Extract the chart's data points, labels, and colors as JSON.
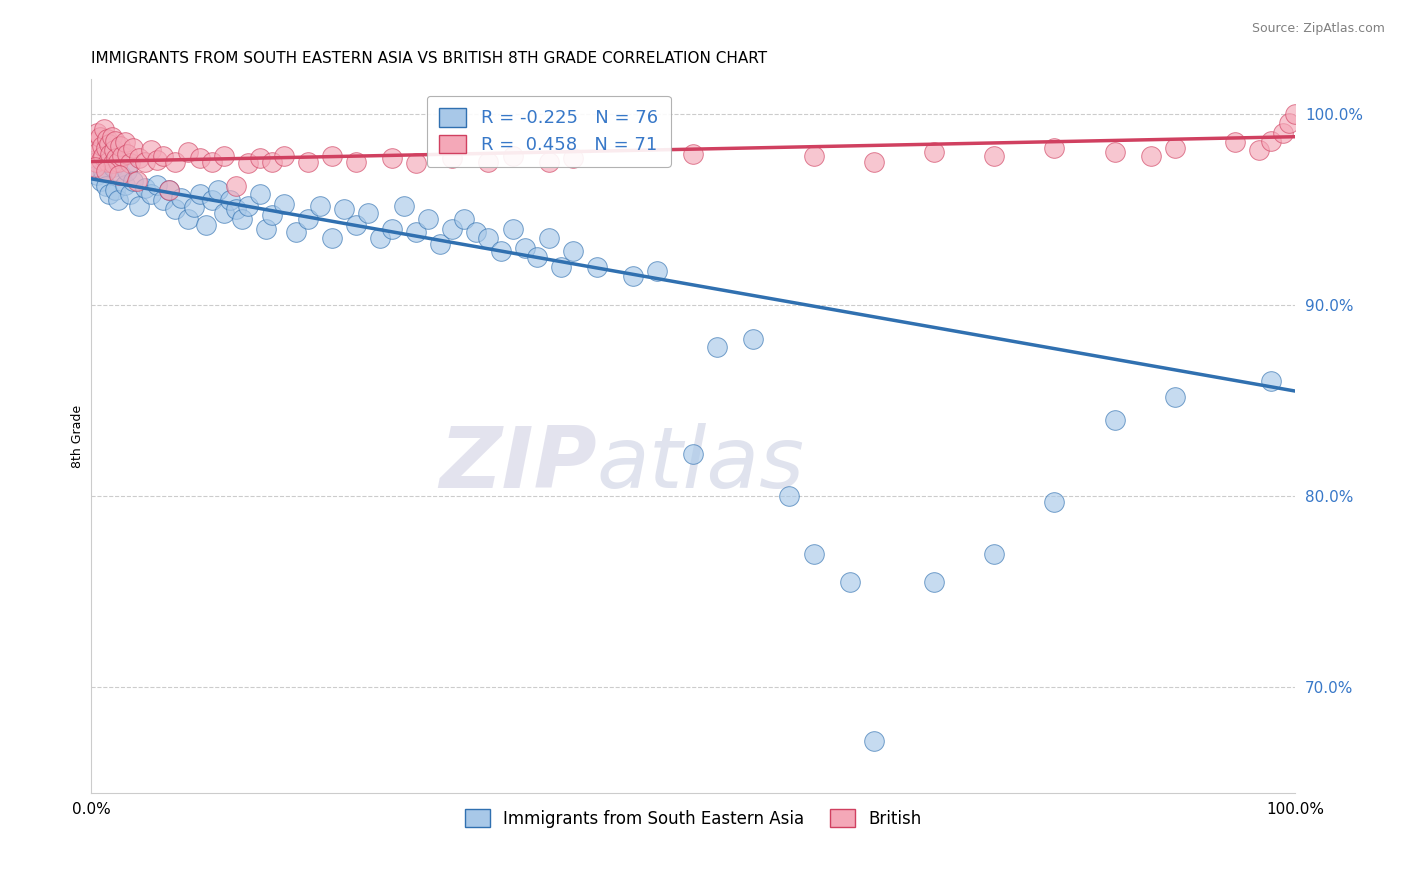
{
  "title": "IMMIGRANTS FROM SOUTH EASTERN ASIA VS BRITISH 8TH GRADE CORRELATION CHART",
  "source": "Source: ZipAtlas.com",
  "ylabel": "8th Grade",
  "blue_label": "Immigrants from South Eastern Asia",
  "pink_label": "British",
  "blue_R": -0.225,
  "blue_N": 76,
  "pink_R": 0.458,
  "pink_N": 71,
  "blue_color": "#a8c8e8",
  "pink_color": "#f4a8b8",
  "blue_line_color": "#3070b0",
  "pink_line_color": "#d04060",
  "blue_x": [
    0.5,
    0.8,
    1.0,
    1.2,
    1.5,
    1.8,
    2.0,
    2.2,
    2.5,
    2.8,
    3.0,
    3.2,
    3.5,
    4.0,
    4.5,
    5.0,
    5.5,
    6.0,
    6.5,
    7.0,
    7.5,
    8.0,
    8.5,
    9.0,
    9.5,
    10.0,
    10.5,
    11.0,
    11.5,
    12.0,
    12.5,
    13.0,
    14.0,
    14.5,
    15.0,
    16.0,
    17.0,
    18.0,
    19.0,
    20.0,
    21.0,
    22.0,
    23.0,
    24.0,
    25.0,
    26.0,
    27.0,
    28.0,
    29.0,
    30.0,
    31.0,
    32.0,
    33.0,
    34.0,
    35.0,
    36.0,
    37.0,
    38.0,
    39.0,
    40.0,
    42.0,
    45.0,
    47.0,
    50.0,
    52.0,
    55.0,
    58.0,
    60.0,
    63.0,
    65.0,
    70.0,
    75.0,
    80.0,
    85.0,
    90.0,
    98.0
  ],
  "blue_y": [
    0.968,
    0.965,
    0.97,
    0.962,
    0.958,
    0.972,
    0.96,
    0.955,
    0.968,
    0.963,
    0.97,
    0.958,
    0.965,
    0.952,
    0.961,
    0.958,
    0.963,
    0.955,
    0.96,
    0.95,
    0.956,
    0.945,
    0.951,
    0.958,
    0.942,
    0.955,
    0.96,
    0.948,
    0.955,
    0.95,
    0.945,
    0.952,
    0.958,
    0.94,
    0.947,
    0.953,
    0.938,
    0.945,
    0.952,
    0.935,
    0.95,
    0.942,
    0.948,
    0.935,
    0.94,
    0.952,
    0.938,
    0.945,
    0.932,
    0.94,
    0.945,
    0.938,
    0.935,
    0.928,
    0.94,
    0.93,
    0.925,
    0.935,
    0.92,
    0.928,
    0.92,
    0.915,
    0.918,
    0.822,
    0.878,
    0.882,
    0.8,
    0.77,
    0.755,
    0.672,
    0.755,
    0.77,
    0.797,
    0.84,
    0.852,
    0.86
  ],
  "pink_x": [
    0.2,
    0.4,
    0.5,
    0.6,
    0.7,
    0.8,
    0.9,
    1.0,
    1.1,
    1.2,
    1.3,
    1.4,
    1.5,
    1.6,
    1.7,
    1.8,
    1.9,
    2.0,
    2.1,
    2.2,
    2.4,
    2.6,
    2.8,
    3.0,
    3.2,
    3.5,
    4.0,
    4.5,
    5.0,
    5.5,
    6.0,
    7.0,
    8.0,
    9.0,
    10.0,
    11.0,
    13.0,
    14.0,
    15.0,
    16.0,
    18.0,
    20.0,
    22.0,
    25.0,
    27.0,
    30.0,
    33.0,
    35.0,
    38.0,
    40.0,
    50.0,
    60.0,
    65.0,
    70.0,
    75.0,
    80.0,
    85.0,
    88.0,
    90.0,
    95.0,
    97.0,
    98.0,
    99.0,
    99.5,
    100.0,
    0.3,
    1.25,
    2.3,
    3.8,
    6.5,
    12.0
  ],
  "pink_y": [
    0.985,
    0.975,
    0.99,
    0.98,
    0.988,
    0.976,
    0.983,
    0.978,
    0.992,
    0.982,
    0.987,
    0.975,
    0.984,
    0.979,
    0.988,
    0.974,
    0.981,
    0.986,
    0.977,
    0.975,
    0.983,
    0.978,
    0.985,
    0.979,
    0.974,
    0.982,
    0.977,
    0.975,
    0.981,
    0.976,
    0.978,
    0.975,
    0.98,
    0.977,
    0.975,
    0.978,
    0.974,
    0.977,
    0.975,
    0.978,
    0.975,
    0.978,
    0.975,
    0.977,
    0.974,
    0.977,
    0.975,
    0.978,
    0.975,
    0.977,
    0.979,
    0.978,
    0.975,
    0.98,
    0.978,
    0.982,
    0.98,
    0.978,
    0.982,
    0.985,
    0.981,
    0.986,
    0.99,
    0.995,
    1.0,
    0.972,
    0.97,
    0.968,
    0.965,
    0.96,
    0.962
  ],
  "xlim": [
    0,
    100
  ],
  "ylim": [
    0.645,
    1.018
  ],
  "ytick_vals": [
    0.7,
    0.8,
    0.9,
    1.0
  ],
  "ytick_labels": [
    "70.0%",
    "80.0%",
    "90.0%",
    "100.0%"
  ],
  "xtick_vals": [
    0,
    100
  ],
  "xtick_labels": [
    "0.0%",
    "100.0%"
  ],
  "watermark_zip": "ZIP",
  "watermark_atlas": "atlas",
  "title_fontsize": 11,
  "axis_label_fontsize": 9,
  "tick_fontsize": 11
}
